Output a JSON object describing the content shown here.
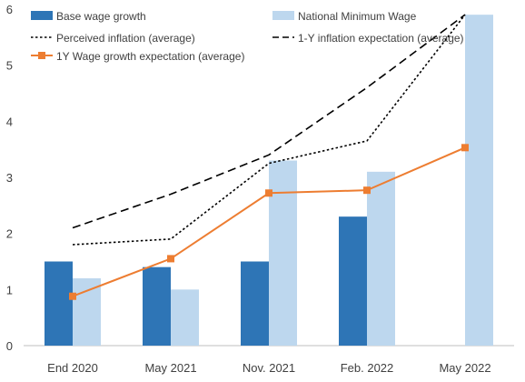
{
  "chart_data": {
    "type": "bar",
    "categories": [
      "End 2020",
      "May 2021",
      "Nov. 2021",
      "Feb. 2022",
      "May 2022"
    ],
    "ylim": [
      0,
      6
    ],
    "yticks": [
      0,
      1,
      2,
      3,
      4,
      5,
      6
    ],
    "grid": false,
    "legend_position": "top-left",
    "series": [
      {
        "name": "Base wage growth",
        "kind": "bar",
        "color": "#2e75b6",
        "values": [
          1.5,
          1.4,
          1.5,
          2.3,
          null
        ]
      },
      {
        "name": "National Minimum Wage",
        "kind": "bar",
        "color": "#bdd7ee",
        "values": [
          1.2,
          1.0,
          3.3,
          3.1,
          5.9
        ]
      },
      {
        "name": "Perceived inflation (average)",
        "kind": "line",
        "style": "dotted",
        "color": "#000000",
        "values": [
          1.8,
          1.9,
          3.25,
          3.65,
          5.9
        ]
      },
      {
        "name": "1-Y inflation expectation (average)",
        "kind": "line",
        "style": "dashed",
        "color": "#000000",
        "values": [
          2.1,
          2.7,
          3.4,
          4.6,
          5.9
        ]
      },
      {
        "name": "1Y Wage growth expectation (average)",
        "kind": "line",
        "style": "solid-marker",
        "color": "#ed7d31",
        "values": [
          0.88,
          1.55,
          2.72,
          2.77,
          3.53
        ]
      }
    ]
  }
}
